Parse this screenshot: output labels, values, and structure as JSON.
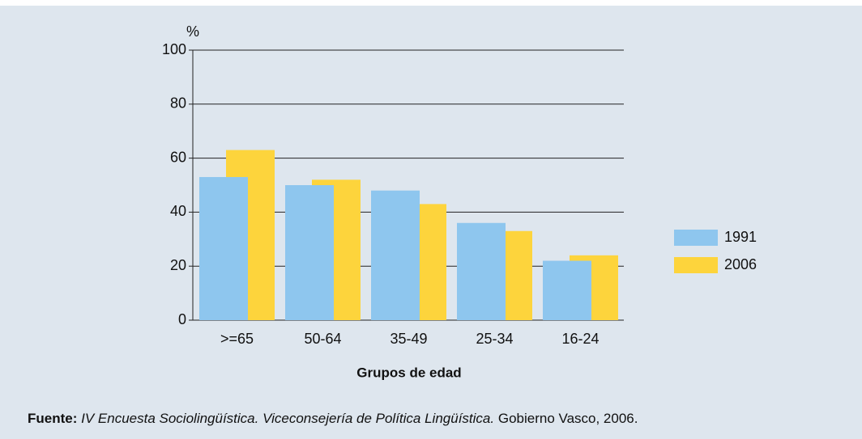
{
  "chart_data": {
    "type": "bar",
    "y_unit": "%",
    "x_label": "Grupos de edad",
    "categories": [
      ">=65",
      "50-64",
      "35-49",
      "25-34",
      "16-24"
    ],
    "series": [
      {
        "name": "1991",
        "color": "#8ec6ee",
        "values": [
          53,
          50,
          48,
          36,
          22
        ]
      },
      {
        "name": "2006",
        "color": "#fdd43c",
        "values": [
          63,
          52,
          43,
          33,
          24
        ]
      }
    ],
    "ylim": [
      0,
      100
    ],
    "yticks": [
      0,
      20,
      40,
      60,
      80,
      100
    ],
    "grid": true,
    "legend": "right"
  },
  "source": {
    "label": "Fuente:",
    "title": "IV Encuesta Sociolingüística. Viceconsejería de Política Lingüística.",
    "rest": "Gobierno Vasco, 2006."
  }
}
